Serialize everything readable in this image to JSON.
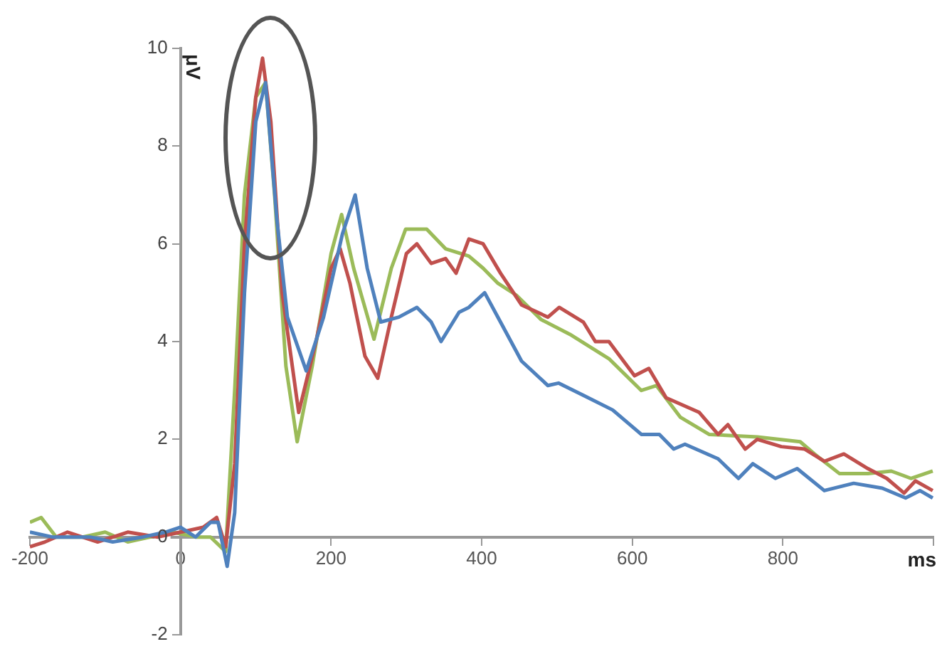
{
  "chart_data": {
    "type": "line",
    "xlabel": "ms",
    "ylabel": "μV",
    "xlim": [
      -200,
      1000
    ],
    "ylim": [
      -2,
      10
    ],
    "xticks": [
      -200,
      0,
      200,
      400,
      600,
      800,
      {
        "value": 1000,
        "label": null
      }
    ],
    "yticks": [
      -2,
      0,
      2,
      4,
      6,
      8,
      10
    ],
    "grid": false,
    "legend": false,
    "marker": "none",
    "line_style": "solid",
    "series": [
      {
        "color": "#4f81bd",
        "x": [
          -200,
          -170,
          -120,
          -90,
          -50,
          -20,
          0,
          20,
          40,
          50,
          62,
          72,
          85,
          100,
          113,
          128,
          142,
          167,
          190,
          215,
          232,
          248,
          266,
          290,
          314,
          333,
          346,
          370,
          383,
          404,
          425,
          453,
          488,
          502,
          535,
          574,
          612,
          636,
          655,
          670,
          714,
          741,
          760,
          790,
          819,
          855,
          894,
          932,
          963,
          982,
          999
        ],
        "values": [
          0.1,
          0,
          0,
          -0.1,
          0,
          0.1,
          0.2,
          0,
          0.3,
          0.3,
          -0.6,
          0.5,
          5,
          8.5,
          9.3,
          6.5,
          4.5,
          3.4,
          4.5,
          6.2,
          7,
          5.5,
          4.4,
          4.5,
          4.7,
          4.4,
          4,
          4.6,
          4.7,
          5,
          4.4,
          3.6,
          3.1,
          3.15,
          2.9,
          2.6,
          2.1,
          2.1,
          1.8,
          1.9,
          1.6,
          1.2,
          1.5,
          1.2,
          1.4,
          0.95,
          1.1,
          1,
          0.8,
          0.95,
          0.8
        ]
      },
      {
        "color": "#c0504d",
        "x": [
          -200,
          -180,
          -150,
          -110,
          -70,
          -30,
          0,
          30,
          48,
          60,
          72,
          85,
          100,
          109,
          120,
          135,
          157,
          180,
          200,
          212,
          225,
          245,
          262,
          280,
          300,
          314,
          333,
          352,
          366,
          383,
          402,
          425,
          453,
          488,
          503,
          535,
          551,
          569,
          603,
          622,
          645,
          689,
          714,
          727,
          750,
          766,
          798,
          829,
          855,
          881,
          913,
          938,
          961,
          976,
          999
        ],
        "values": [
          -0.2,
          -0.1,
          0.1,
          -0.1,
          0.1,
          0,
          0.1,
          0.2,
          0.4,
          -0.2,
          1.5,
          6,
          9,
          9.8,
          8.5,
          5,
          2.55,
          4,
          5.5,
          5.9,
          5.2,
          3.7,
          3.25,
          4.5,
          5.8,
          6,
          5.6,
          5.7,
          5.4,
          6.1,
          6,
          5.4,
          4.75,
          4.5,
          4.7,
          4.4,
          4,
          4,
          3.3,
          3.45,
          2.85,
          2.55,
          2.1,
          2.3,
          1.8,
          2,
          1.85,
          1.8,
          1.55,
          1.7,
          1.4,
          1.2,
          0.9,
          1.15,
          0.95
        ]
      },
      {
        "color": "#9bbb59",
        "x": [
          -200,
          -185,
          -165,
          -130,
          -100,
          -70,
          -40,
          -10,
          20,
          40,
          60,
          72,
          85,
          100,
          113,
          125,
          140,
          155,
          175,
          200,
          214,
          230,
          257,
          280,
          299,
          327,
          352,
          383,
          402,
          421,
          446,
          479,
          517,
          569,
          612,
          632,
          664,
          702,
          766,
          823,
          842,
          875,
          913,
          944,
          970,
          999
        ],
        "values": [
          0.3,
          0.4,
          0,
          0,
          0.1,
          -0.1,
          0,
          0.1,
          0,
          0,
          -0.3,
          3,
          7,
          9,
          9.3,
          7,
          3.5,
          1.95,
          3.5,
          5.8,
          6.6,
          5.5,
          4.05,
          5.5,
          6.3,
          6.3,
          5.9,
          5.75,
          5.5,
          5.2,
          4.95,
          4.45,
          4.15,
          3.65,
          3,
          3.1,
          2.45,
          2.1,
          2.05,
          1.95,
          1.7,
          1.3,
          1.3,
          1.35,
          1.2,
          1.35
        ]
      }
    ]
  }
}
